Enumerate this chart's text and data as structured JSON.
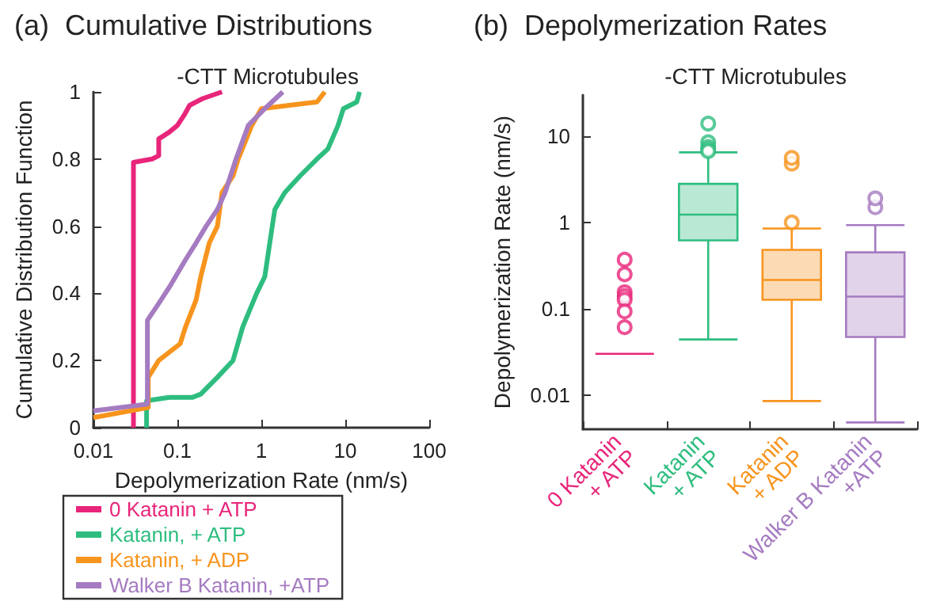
{
  "chart_data": [
    {
      "type": "line",
      "title": "(a)  Cumulative Distributions",
      "subtitle": "-CTT Microtubules",
      "xlabel": "Depolymerization Rate (nm/s)",
      "ylabel": "Cumulative Distribution Function",
      "log": "x",
      "xlim": [
        0.01,
        100
      ],
      "xticks": [
        0.01,
        0.1,
        1,
        10,
        100
      ],
      "ylim": [
        0,
        1
      ],
      "yticks": [
        0,
        0.2,
        0.4,
        0.6,
        0.8,
        1
      ],
      "grid": false,
      "legend": "bottom",
      "series": [
        {
          "name": "0 Katanin + ATP",
          "color": "#e8257a",
          "x": [
            0.03,
            0.03,
            0.05,
            0.06,
            0.06,
            0.08,
            0.1,
            0.12,
            0.14,
            0.2,
            0.34
          ],
          "values": [
            0,
            0.79,
            0.8,
            0.81,
            0.86,
            0.88,
            0.9,
            0.93,
            0.96,
            0.98,
            1
          ]
        },
        {
          "name": "Katanin, + ATP",
          "color": "#2ebd7f",
          "x": [
            0.043,
            0.043,
            0.08,
            0.15,
            0.19,
            0.3,
            0.46,
            0.6,
            0.88,
            1.1,
            1.35,
            1.45,
            1.9,
            2.9,
            4.6,
            6.2,
            8.2,
            9.5,
            13.7,
            14.8
          ],
          "values": [
            0,
            0.08,
            0.09,
            0.09,
            0.1,
            0.15,
            0.2,
            0.3,
            0.4,
            0.45,
            0.6,
            0.65,
            0.7,
            0.75,
            0.8,
            0.83,
            0.9,
            0.95,
            0.97,
            1
          ]
        },
        {
          "name": "Katanin, + ADP",
          "color": "#f7941d",
          "x": [
            0.01,
            0.045,
            0.045,
            0.06,
            0.108,
            0.125,
            0.167,
            0.19,
            0.24,
            0.3,
            0.34,
            0.46,
            0.53,
            0.77,
            1.0,
            4.6,
            5.7
          ],
          "values": [
            0.03,
            0.06,
            0.15,
            0.2,
            0.25,
            0.3,
            0.38,
            0.45,
            0.55,
            0.6,
            0.7,
            0.75,
            0.8,
            0.9,
            0.95,
            0.97,
            1
          ]
        },
        {
          "name": "Walker B Katanin, +ATP",
          "color": "#a57bc1",
          "x": [
            0.01,
            0.044,
            0.044,
            0.06,
            0.081,
            0.125,
            0.167,
            0.22,
            0.3,
            0.37,
            0.5,
            0.7,
            1.1,
            1.8
          ],
          "values": [
            0.05,
            0.07,
            0.32,
            0.37,
            0.42,
            0.5,
            0.55,
            0.6,
            0.65,
            0.7,
            0.8,
            0.9,
            0.95,
            1
          ]
        }
      ]
    },
    {
      "type": "box",
      "title": "(b)  Depolymerization Rates",
      "subtitle": "-CTT Microtubules",
      "ylabel": "Depolymerization Rate (nm/s)",
      "log": "y",
      "ylim": [
        0.004,
        30
      ],
      "yticks": [
        0.01,
        0.1,
        1,
        10
      ],
      "grid": false,
      "categories": [
        "0 Katanin + ATP",
        "Katanin + ATP",
        "Katanin + ADP",
        "Walker B Katanin +ATP"
      ],
      "colors": [
        "#e8257a",
        "#2ebd7f",
        "#f7941d",
        "#a57bc1"
      ],
      "boxes": [
        {
          "low": 0.03,
          "q1": 0.03,
          "median": 0.03,
          "q3": 0.03,
          "high": 0.03,
          "outliers": [
            0.37,
            0.25,
            0.155,
            0.14,
            0.127,
            0.093,
            0.061
          ]
        },
        {
          "low": 0.044,
          "q1": 0.62,
          "median": 1.23,
          "q3": 2.8,
          "high": 6.5,
          "outliers": [
            14,
            8.5,
            7.5,
            7,
            6.7
          ]
        },
        {
          "low": 0.0085,
          "q1": 0.127,
          "median": 0.215,
          "q3": 0.48,
          "high": 0.85,
          "outliers": [
            1.0,
            4.8,
            5.6
          ]
        },
        {
          "low": 0.0048,
          "q1": 0.047,
          "median": 0.138,
          "q3": 0.45,
          "high": 0.93,
          "outliers": [
            1.5,
            1.9
          ]
        }
      ]
    }
  ]
}
